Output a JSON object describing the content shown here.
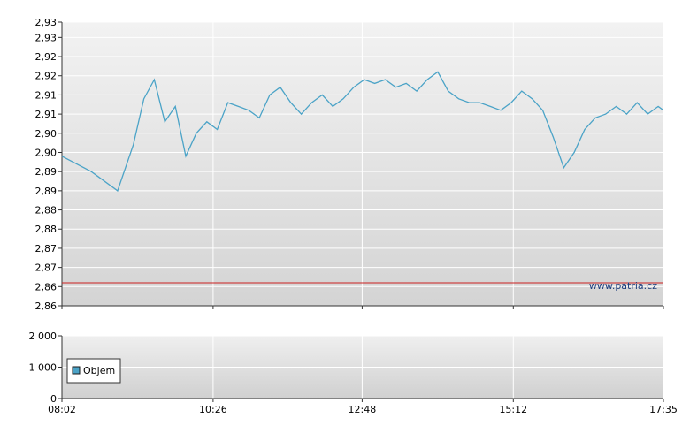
{
  "chart_data": [
    {
      "type": "line",
      "series": [
        {
          "x": [
            "08:02",
            "08:30",
            "08:55",
            "09:10",
            "09:20",
            "09:30",
            "09:40",
            "09:50",
            "10:00",
            "10:10",
            "10:20",
            "10:30",
            "10:40",
            "10:50",
            "11:00",
            "11:10",
            "11:20",
            "11:30",
            "11:40",
            "11:50",
            "12:00",
            "12:10",
            "12:20",
            "12:30",
            "12:40",
            "12:50",
            "13:00",
            "13:10",
            "13:20",
            "13:30",
            "13:40",
            "13:50",
            "14:00",
            "14:10",
            "14:20",
            "14:30",
            "14:40",
            "14:50",
            "15:00",
            "15:10",
            "15:20",
            "15:30",
            "15:40",
            "15:50",
            "16:00",
            "16:10",
            "16:20",
            "16:30",
            "16:40",
            "16:50",
            "17:00",
            "17:10",
            "17:20",
            "17:30",
            "17:35"
          ],
          "values": [
            2.899,
            2.895,
            2.89,
            2.902,
            2.914,
            2.919,
            2.908,
            2.912,
            2.899,
            2.905,
            2.908,
            2.906,
            2.913,
            2.912,
            2.911,
            2.909,
            2.915,
            2.917,
            2.913,
            2.91,
            2.913,
            2.915,
            2.912,
            2.914,
            2.917,
            2.919,
            2.918,
            2.919,
            2.917,
            2.918,
            2.916,
            2.919,
            2.921,
            2.916,
            2.914,
            2.913,
            2.913,
            2.912,
            2.911,
            2.913,
            2.916,
            2.914,
            2.911,
            2.904,
            2.896,
            2.9,
            2.906,
            2.909,
            2.91,
            2.912,
            2.91,
            2.913,
            2.91,
            2.912,
            2.911
          ]
        }
      ],
      "ylim": [
        2.86,
        2.934
      ],
      "yticks": [
        2.86,
        2.865,
        2.87,
        2.875,
        2.88,
        2.885,
        2.89,
        2.895,
        2.9,
        2.905,
        2.91,
        2.915,
        2.92,
        2.925,
        2.93,
        2.934
      ],
      "ytick_labels": [
        "2,86",
        "2,86",
        "2,87",
        "2,87",
        "2,88",
        "2,88",
        "2,89",
        "2,89",
        "2,90",
        "2,90",
        "2,91",
        "2,91",
        "2,92",
        "2,92",
        "2,93",
        "2,93"
      ],
      "reference_line": 2.866,
      "grid": true,
      "line_color": "#4ba3c7",
      "reference_color": "#cc2222",
      "watermark": "www.patria.cz"
    },
    {
      "type": "bar",
      "ylim": [
        0,
        2000
      ],
      "yticks": [
        0,
        1000,
        2000
      ],
      "ytick_labels": [
        "0",
        "1 000",
        "2 000"
      ],
      "legend": [
        "Objem"
      ],
      "legend_placement": "left",
      "legend_color": "#4ba3c7",
      "xtick_labels": [
        "08:02",
        "10:26",
        "12:48",
        "15:12",
        "17:35"
      ],
      "grid": true
    }
  ]
}
